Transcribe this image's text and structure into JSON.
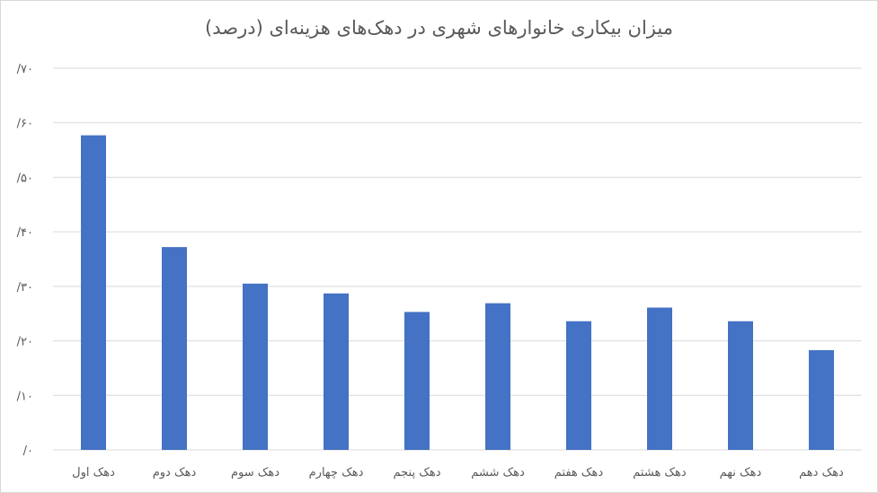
{
  "chart_data": {
    "type": "bar",
    "title": "میزان بیکاری خانوارهای شهری در دهک‌های هزینه‌ای (درصد)",
    "categories": [
      "دهک اول",
      "دهک دوم",
      "دهک سوم",
      "دهک چهارم",
      "دهک پنجم",
      "دهک ششم",
      "دهک هفتم",
      "دهک هشتم",
      "دهک نهم",
      "دهک دهم"
    ],
    "values": [
      0.577,
      0.372,
      0.305,
      0.287,
      0.253,
      0.269,
      0.236,
      0.261,
      0.236,
      0.183
    ],
    "ylim": [
      0,
      0.7
    ],
    "yticks": [
      0,
      0.1,
      0.2,
      0.3,
      0.4,
      0.5,
      0.6,
      0.7
    ],
    "ytick_labels": [
      "/۰",
      "/۱۰",
      "/۲۰",
      "/۳۰",
      "/۴۰",
      "/۵۰",
      "/۶۰",
      "/۷۰"
    ],
    "grid": true,
    "legend": "none",
    "bar_color": "#4472C4",
    "grid_color": "#d9d9d9"
  }
}
